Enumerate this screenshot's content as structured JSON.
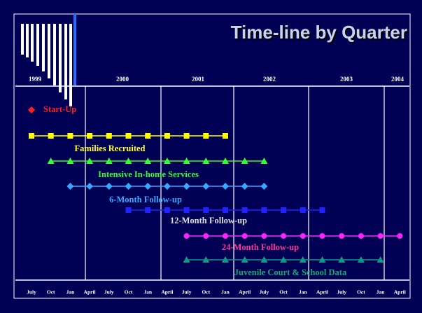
{
  "title": "Time-line by Quarter",
  "years": [
    "1999",
    "2000",
    "2001",
    "2002",
    "2003",
    "2004"
  ],
  "quarters": [
    "July",
    "Oct",
    "Jan",
    "April",
    "July",
    "Oct",
    "Jan",
    "April",
    "July",
    "Oct",
    "Jan",
    "April",
    "July",
    "Oct",
    "Jan",
    "April",
    "July",
    "Oct",
    "Jan",
    "April"
  ],
  "tasks": [
    {
      "label": "Start-Up",
      "color": "#ff2020",
      "marker": "diamond"
    },
    {
      "label": "Families Recruited",
      "color": "#ffff00",
      "marker": "square"
    },
    {
      "label": "Intensive In-home Services",
      "color": "#33ff33",
      "marker": "triangle"
    },
    {
      "label": "6-Month Follow-up",
      "color": "#33aaff",
      "marker": "diamond"
    },
    {
      "label": "12-Month Follow-up",
      "color": "#2222ff",
      "marker": "square"
    },
    {
      "label": "24-Month Follow-up",
      "color": "#ff22ff",
      "marker": "circle"
    },
    {
      "label": "Juvenile Court & School Data",
      "color": "#119988",
      "marker": "triangle"
    }
  ]
}
